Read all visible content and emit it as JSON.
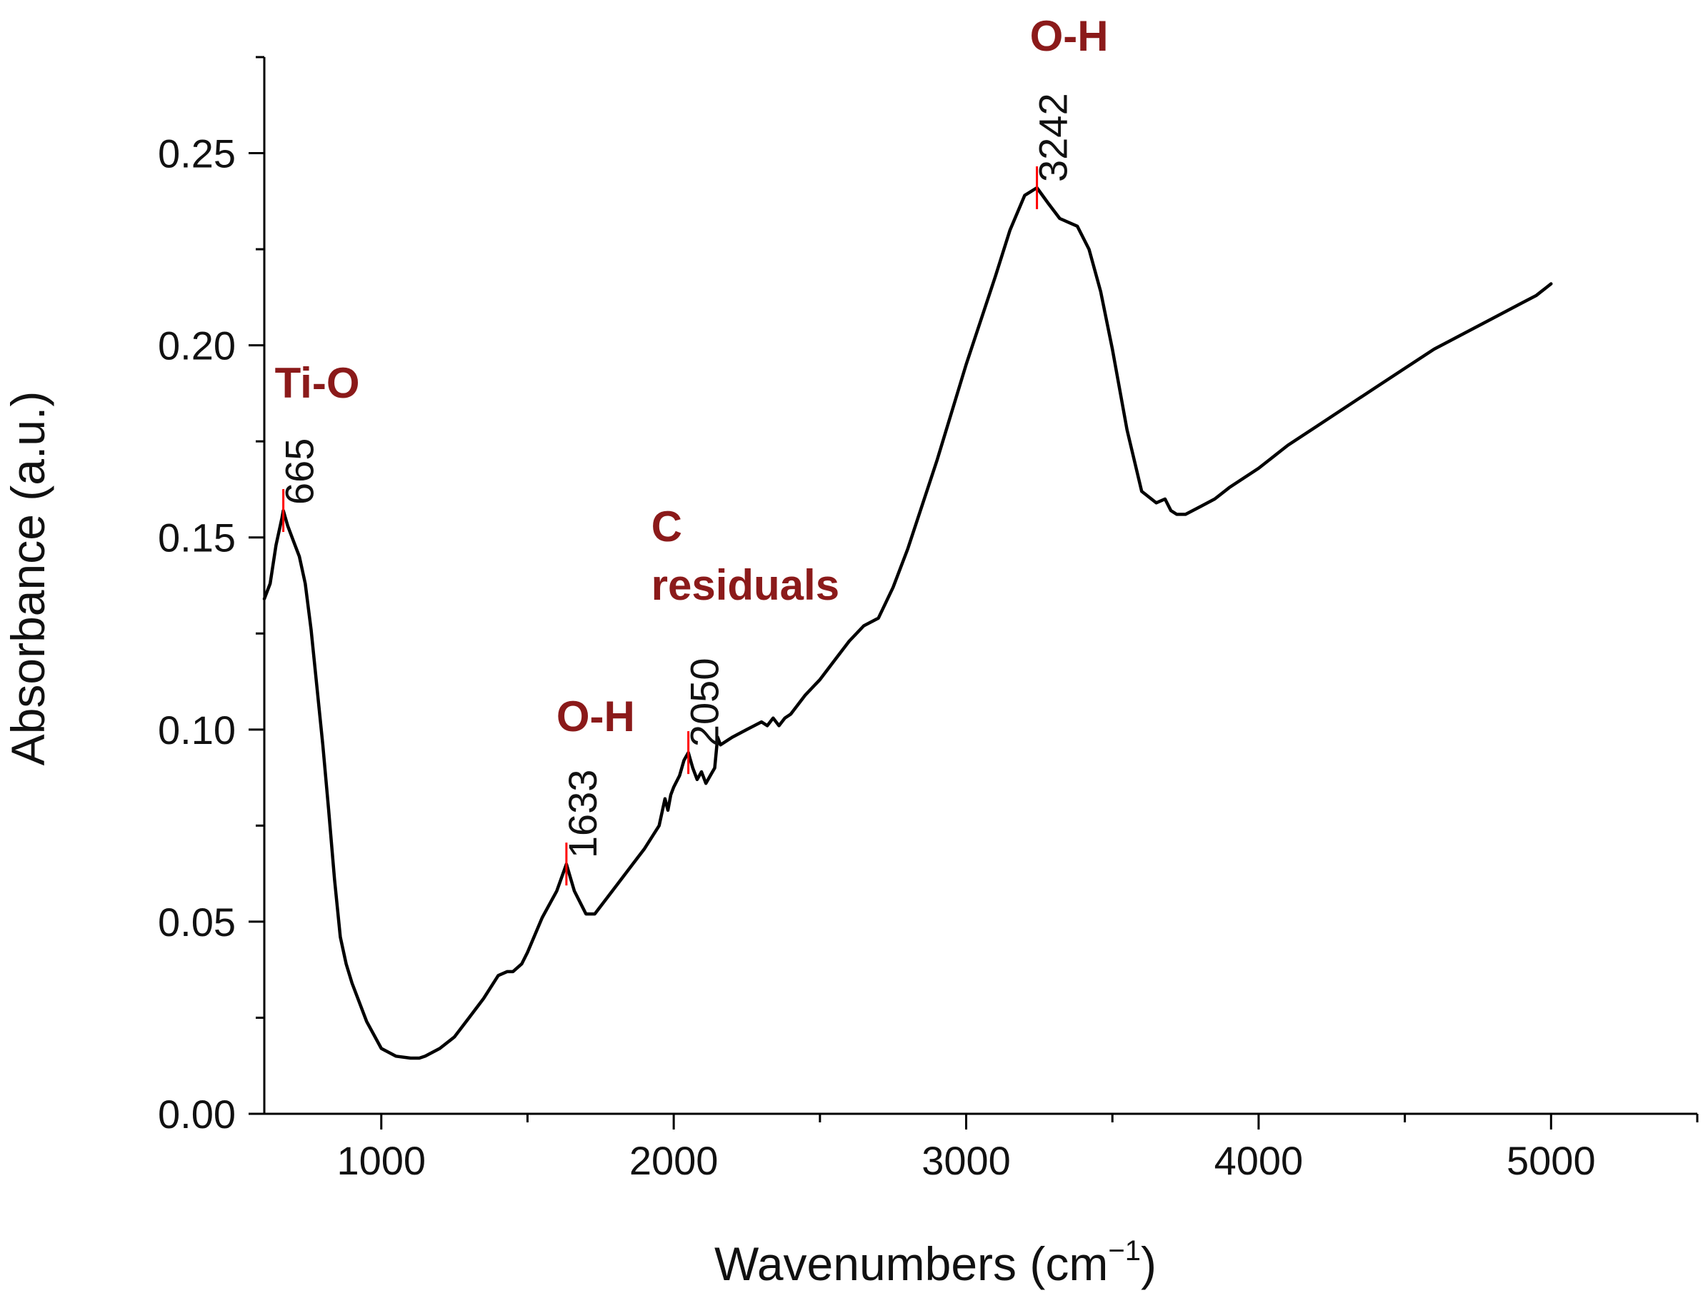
{
  "chart_data": {
    "type": "line",
    "title": "",
    "xlabel": "Wavenumbers (cm",
    "xlabel_sup": "−1",
    "xlabel_close": ")",
    "ylabel": "Absorbance (a.u.)",
    "xlim": [
      600,
      5500
    ],
    "ylim": [
      0,
      0.275
    ],
    "x_ticks": [
      1000,
      2000,
      3000,
      4000,
      5000
    ],
    "x_tick_labels": [
      "1000",
      "2000",
      "3000",
      "4000",
      "5000"
    ],
    "x_minor_ticks": [
      1500,
      2500,
      3500,
      4500,
      5500
    ],
    "y_ticks": [
      0,
      0.05,
      0.1,
      0.15,
      0.2,
      0.25
    ],
    "y_tick_labels": [
      "0.00",
      "0.05",
      "0.10",
      "0.15",
      "0.20",
      "0.25"
    ],
    "y_minor_ticks": [
      0.025,
      0.075,
      0.125,
      0.175,
      0.225,
      0.275
    ],
    "grid": false,
    "line_color": "#000000",
    "marker_color": "#ff0000",
    "assignment_color": "#8b1a1a",
    "series": [
      {
        "name": "Absorbance",
        "x": [
          600,
          620,
          640,
          660,
          665,
          680,
          700,
          720,
          740,
          760,
          780,
          800,
          820,
          840,
          860,
          880,
          900,
          950,
          1000,
          1050,
          1100,
          1130,
          1150,
          1200,
          1250,
          1300,
          1350,
          1400,
          1430,
          1450,
          1480,
          1500,
          1550,
          1600,
          1633,
          1660,
          1700,
          1730,
          1760,
          1800,
          1850,
          1900,
          1950,
          1970,
          1980,
          1990,
          2000,
          2020,
          2035,
          2050,
          2065,
          2080,
          2095,
          2110,
          2125,
          2140,
          2150,
          2160,
          2200,
          2250,
          2300,
          2320,
          2340,
          2360,
          2380,
          2400,
          2450,
          2500,
          2550,
          2600,
          2650,
          2700,
          2750,
          2800,
          2900,
          3000,
          3100,
          3150,
          3200,
          3242,
          3280,
          3320,
          3350,
          3380,
          3420,
          3460,
          3500,
          3550,
          3600,
          3650,
          3680,
          3700,
          3720,
          3750,
          3800,
          3850,
          3900,
          4000,
          4100,
          4200,
          4300,
          4400,
          4500,
          4600,
          4700,
          4800,
          4900,
          4950,
          5000
        ],
        "values": [
          0.134,
          0.138,
          0.148,
          0.155,
          0.157,
          0.153,
          0.149,
          0.145,
          0.138,
          0.126,
          0.111,
          0.096,
          0.079,
          0.061,
          0.046,
          0.039,
          0.034,
          0.024,
          0.017,
          0.015,
          0.0145,
          0.0145,
          0.015,
          0.017,
          0.02,
          0.025,
          0.03,
          0.036,
          0.037,
          0.037,
          0.039,
          0.042,
          0.051,
          0.058,
          0.065,
          0.058,
          0.052,
          0.052,
          0.055,
          0.059,
          0.064,
          0.069,
          0.075,
          0.082,
          0.079,
          0.083,
          0.085,
          0.088,
          0.092,
          0.094,
          0.09,
          0.087,
          0.089,
          0.086,
          0.088,
          0.09,
          0.098,
          0.096,
          0.098,
          0.1,
          0.102,
          0.101,
          0.103,
          0.101,
          0.103,
          0.104,
          0.109,
          0.113,
          0.118,
          0.123,
          0.127,
          0.129,
          0.137,
          0.147,
          0.17,
          0.195,
          0.218,
          0.23,
          0.239,
          0.241,
          0.237,
          0.233,
          0.232,
          0.231,
          0.225,
          0.214,
          0.199,
          0.178,
          0.162,
          0.159,
          0.16,
          0.157,
          0.156,
          0.156,
          0.158,
          0.16,
          0.163,
          0.168,
          0.174,
          0.179,
          0.184,
          0.189,
          0.194,
          0.199,
          0.203,
          0.207,
          0.211,
          0.213,
          0.216
        ]
      }
    ],
    "peaks": [
      {
        "x": 665,
        "y": 0.157,
        "label": "665",
        "assignment": "Ti-O"
      },
      {
        "x": 1633,
        "y": 0.065,
        "label": "1633",
        "assignment": "O-H"
      },
      {
        "x": 2050,
        "y": 0.094,
        "label": "2050",
        "assignment_line1": "C",
        "assignment_line2": "residuals"
      },
      {
        "x": 3242,
        "y": 0.241,
        "label": "3242",
        "assignment": "O-H"
      }
    ]
  }
}
